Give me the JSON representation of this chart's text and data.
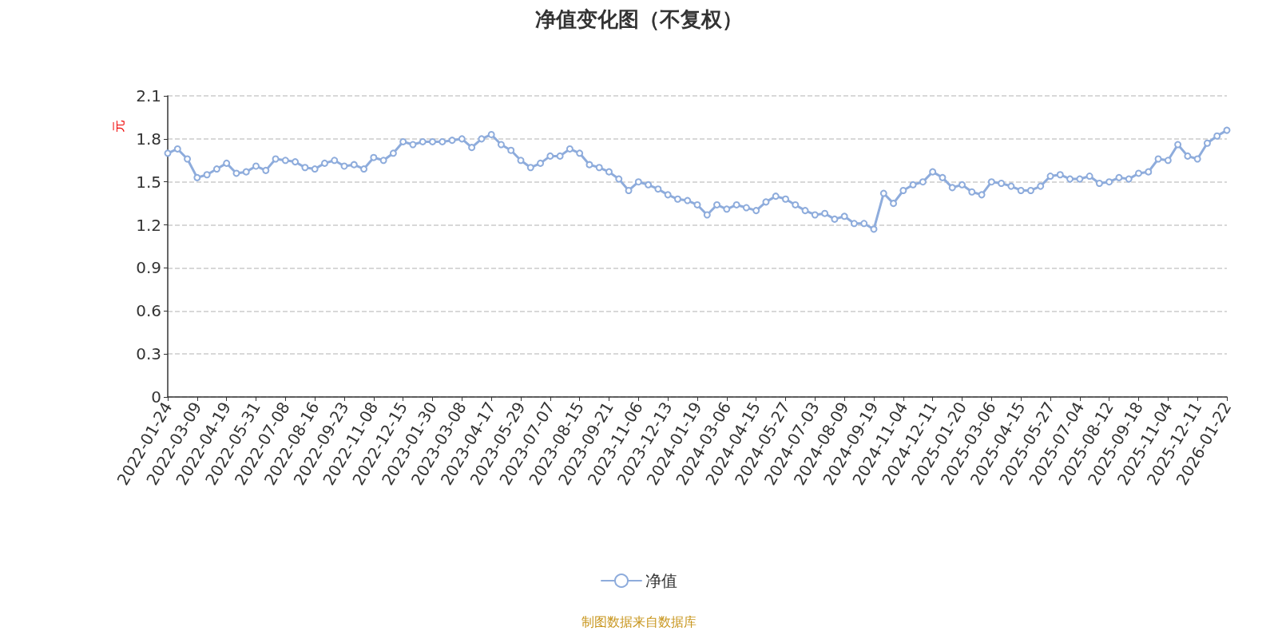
{
  "chart_data": {
    "type": "line",
    "title": "净值变化图（不复权）",
    "ylabel": "元",
    "categories": [
      "2022-01-24",
      null,
      null,
      "2022-03-09",
      null,
      null,
      "2022-04-19",
      null,
      null,
      "2022-05-31",
      null,
      null,
      "2022-07-08",
      null,
      null,
      "2022-08-16",
      null,
      null,
      "2022-09-23",
      null,
      null,
      "2022-11-08",
      null,
      null,
      "2022-12-15",
      null,
      null,
      "2023-01-30",
      null,
      null,
      "2023-03-08",
      null,
      null,
      "2023-04-17",
      null,
      null,
      "2023-05-29",
      null,
      null,
      "2023-07-07",
      null,
      null,
      "2023-08-15",
      null,
      null,
      "2023-09-21",
      null,
      null,
      "2023-11-06",
      null,
      null,
      "2023-12-13",
      null,
      null,
      "2024-01-19",
      null,
      null,
      "2024-03-06",
      null,
      null,
      "2024-04-15",
      null,
      null,
      "2024-05-27",
      null,
      null,
      "2024-07-03",
      null,
      null,
      "2024-08-09",
      null,
      null,
      "2024-09-19",
      null,
      null,
      "2024-11-04",
      null,
      null,
      "2024-12-11",
      null,
      null,
      "2025-01-20",
      null,
      null,
      "2025-03-06",
      null,
      null,
      "2025-04-15",
      null,
      null,
      "2025-05-27",
      null,
      null,
      "2025-07-04",
      null,
      null,
      "2025-08-12",
      null,
      null,
      "2025-09-18",
      null,
      null,
      "2025-11-04",
      null,
      null,
      "2025-12-11",
      null,
      null,
      "2026-01-22"
    ],
    "series": [
      {
        "name": "净值",
        "color": "#8eacdc",
        "values": [
          1.7,
          1.73,
          1.66,
          1.53,
          1.55,
          1.59,
          1.63,
          1.56,
          1.57,
          1.61,
          1.58,
          1.66,
          1.65,
          1.64,
          1.6,
          1.59,
          1.63,
          1.65,
          1.61,
          1.62,
          1.59,
          1.67,
          1.65,
          1.7,
          1.78,
          1.76,
          1.78,
          1.78,
          1.78,
          1.79,
          1.8,
          1.74,
          1.8,
          1.83,
          1.76,
          1.72,
          1.65,
          1.6,
          1.63,
          1.68,
          1.68,
          1.73,
          1.7,
          1.62,
          1.6,
          1.57,
          1.52,
          1.44,
          1.5,
          1.48,
          1.45,
          1.41,
          1.38,
          1.37,
          1.34,
          1.27,
          1.34,
          1.31,
          1.34,
          1.32,
          1.3,
          1.36,
          1.4,
          1.38,
          1.34,
          1.3,
          1.27,
          1.28,
          1.24,
          1.26,
          1.21,
          1.21,
          1.17,
          1.42,
          1.35,
          1.44,
          1.48,
          1.5,
          1.57,
          1.53,
          1.46,
          1.48,
          1.43,
          1.41,
          1.5,
          1.49,
          1.47,
          1.44,
          1.44,
          1.47,
          1.54,
          1.55,
          1.52,
          1.52,
          1.54,
          1.49,
          1.5,
          1.53,
          1.52,
          1.56,
          1.57,
          1.66,
          1.65,
          1.76,
          1.68,
          1.66,
          1.77,
          1.82,
          1.86
        ]
      }
    ],
    "ylim": [
      0,
      2.1
    ],
    "yticks": [
      0,
      0.3,
      0.6,
      0.9,
      1.2,
      1.5,
      1.8,
      2.1
    ],
    "grid": "y",
    "legend": "bottom",
    "marker": "circle",
    "line_style": "solid",
    "annotations": [
      "制图数据来自数据库"
    ]
  }
}
